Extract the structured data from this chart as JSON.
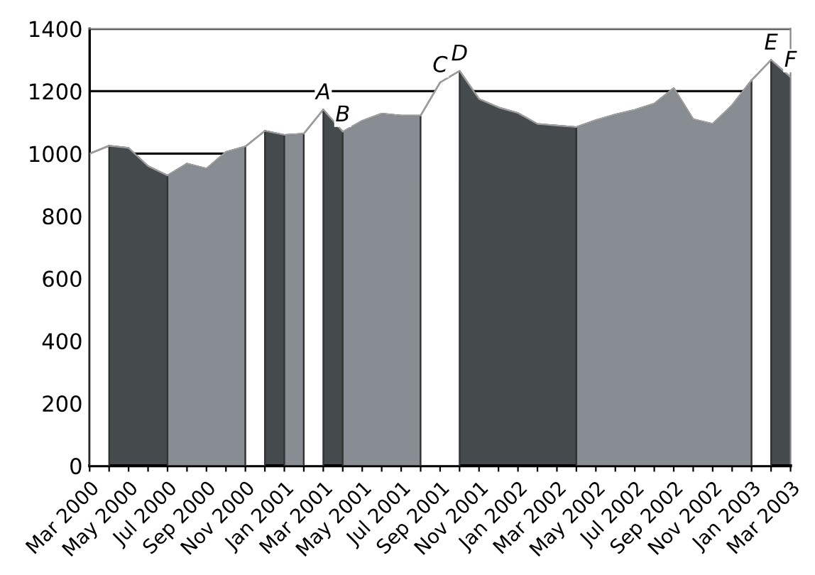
{
  "chart_data": {
    "type": "area",
    "x": [
      "2000-03",
      "2000-04",
      "2000-05",
      "2000-06",
      "2000-07",
      "2000-08",
      "2000-09",
      "2000-10",
      "2000-11",
      "2000-12",
      "2001-01",
      "2001-02",
      "2001-03",
      "2001-04",
      "2001-05",
      "2001-06",
      "2001-07",
      "2001-08",
      "2001-09",
      "2001-10",
      "2001-11",
      "2001-12",
      "2002-01",
      "2002-02",
      "2002-03",
      "2002-04",
      "2002-05",
      "2002-06",
      "2002-07",
      "2002-08",
      "2002-09",
      "2002-10",
      "2002-11",
      "2002-12",
      "2003-01",
      "2003-02",
      "2003-03"
    ],
    "xlim": [
      "2000-03",
      "2003-03"
    ],
    "xticks": [
      {
        "value": "2000-03",
        "label": "Mar 2000"
      },
      {
        "value": "2000-04",
        "label": null
      },
      {
        "value": "2000-05",
        "label": "May 2000"
      },
      {
        "value": "2000-06",
        "label": null
      },
      {
        "value": "2000-07",
        "label": "Jul 2000"
      },
      {
        "value": "2000-08",
        "label": null
      },
      {
        "value": "2000-09",
        "label": "Sep 2000"
      },
      {
        "value": "2000-10",
        "label": null
      },
      {
        "value": "2000-11",
        "label": "Nov 2000"
      },
      {
        "value": "2000-12",
        "label": null
      },
      {
        "value": "2001-01",
        "label": "Jan 2001"
      },
      {
        "value": "2001-02",
        "label": null
      },
      {
        "value": "2001-03",
        "label": "Mar 2001"
      },
      {
        "value": "2001-04",
        "label": null
      },
      {
        "value": "2001-05",
        "label": "May 2001"
      },
      {
        "value": "2001-06",
        "label": null
      },
      {
        "value": "2001-07",
        "label": "Jul 2001"
      },
      {
        "value": "2001-08",
        "label": null
      },
      {
        "value": "2001-09",
        "label": "Sep 2001"
      },
      {
        "value": "2001-10",
        "label": null
      },
      {
        "value": "2001-11",
        "label": "Nov 2001"
      },
      {
        "value": "2001-12",
        "label": null
      },
      {
        "value": "2002-01",
        "label": "Jan 2002"
      },
      {
        "value": "2002-02",
        "label": null
      },
      {
        "value": "2002-03",
        "label": "Mar 2002"
      },
      {
        "value": "2002-04",
        "label": null
      },
      {
        "value": "2002-05",
        "label": "May 2002"
      },
      {
        "value": "2002-06",
        "label": null
      },
      {
        "value": "2002-07",
        "label": "Jul 2002"
      },
      {
        "value": "2002-08",
        "label": null
      },
      {
        "value": "2002-09",
        "label": "Sep 2002"
      },
      {
        "value": "2002-10",
        "label": null
      },
      {
        "value": "2002-11",
        "label": "Nov 2002"
      },
      {
        "value": "2002-12",
        "label": null
      },
      {
        "value": "2003-01",
        "label": "Jan 2003"
      },
      {
        "value": "2003-02",
        "label": null
      },
      {
        "value": "2003-03",
        "label": "Mar 2003"
      }
    ],
    "series": [
      {
        "color": "#454b4d",
        "values": [
          null,
          1025,
          1018,
          960,
          930,
          null,
          null,
          null,
          null,
          1073,
          1060,
          null,
          1141,
          1070,
          null,
          null,
          null,
          null,
          null,
          1265,
          1175,
          1148,
          1130,
          1095,
          1090,
          1085,
          null,
          null,
          null,
          null,
          null,
          null,
          null,
          null,
          null,
          1300,
          1245
        ]
      },
      {
        "color": "#878d93",
        "values": [
          null,
          null,
          null,
          null,
          930,
          968,
          952,
          1005,
          1023,
          null,
          1060,
          1064,
          null,
          1070,
          1105,
          1128,
          1122,
          1122,
          null,
          null,
          null,
          null,
          null,
          null,
          null,
          1085,
          1107,
          1125,
          1140,
          1160,
          1210,
          1110,
          1095,
          1155,
          1235,
          null,
          null
        ]
      },
      {
        "color": "#ffffff",
        "values": [
          1000,
          1025,
          null,
          null,
          null,
          null,
          null,
          null,
          1023,
          1073,
          null,
          1064,
          1141,
          null,
          null,
          null,
          null,
          1122,
          1228,
          1265,
          null,
          null,
          null,
          null,
          null,
          null,
          null,
          null,
          null,
          null,
          null,
          null,
          null,
          null,
          1235,
          1300,
          null
        ]
      },
      {
        "type": "line",
        "color": "#a0a0a0",
        "values": [
          1000,
          1025,
          1018,
          960,
          930,
          968,
          952,
          1005,
          1023,
          1073,
          1060,
          1064,
          1141,
          1070,
          1105,
          1128,
          1122,
          1122,
          1228,
          1265,
          1175,
          1148,
          1130,
          1095,
          1090,
          1085,
          1107,
          1125,
          1140,
          1160,
          1210,
          1110,
          1095,
          1155,
          1235,
          1300,
          1245
        ]
      }
    ],
    "ylim": [
      0,
      1400
    ],
    "yticks": [
      0,
      200,
      400,
      600,
      800,
      1000,
      1200,
      1400
    ],
    "grid": "y",
    "annotations": [
      {
        "text": "A",
        "x": "2001-03",
        "y": 1141
      },
      {
        "text": "B",
        "x": "2001-04",
        "y": 1070
      },
      {
        "text": "C",
        "x": "2001-09",
        "y": 1228
      },
      {
        "text": "D",
        "x": "2001-10",
        "y": 1265
      },
      {
        "text": "E",
        "x": "2003-02",
        "y": 1300
      },
      {
        "text": "F",
        "x": "2003-03",
        "y": 1245
      }
    ]
  }
}
